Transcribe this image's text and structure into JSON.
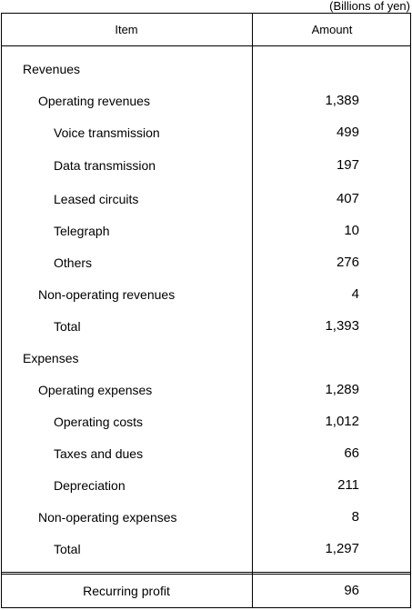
{
  "unit_note": "(Billions of yen)",
  "header": {
    "item": "Item",
    "amount": "Amount"
  },
  "rows": [
    {
      "label": "Revenues",
      "amount": ""
    },
    {
      "label": "Operating revenues",
      "amount": "1,389"
    },
    {
      "label": "Voice transmission",
      "amount": "499"
    },
    {
      "label": "Data transmission",
      "amount": "197"
    },
    {
      "label": "Leased circuits",
      "amount": "407"
    },
    {
      "label": "Telegraph",
      "amount": "10"
    },
    {
      "label": "Others",
      "amount": "276"
    },
    {
      "label": "Non-operating revenues",
      "amount": "4"
    },
    {
      "label": "Total",
      "amount": "1,393"
    },
    {
      "label": "Expenses",
      "amount": ""
    },
    {
      "label": "Operating expenses",
      "amount": "1,289"
    },
    {
      "label": "Operating costs",
      "amount": "1,012"
    },
    {
      "label": "Taxes and dues",
      "amount": "66"
    },
    {
      "label": "Depreciation",
      "amount": "211"
    },
    {
      "label": "Non-operating expenses",
      "amount": "8"
    },
    {
      "label": "Total",
      "amount": "1,297"
    }
  ],
  "profit": {
    "label": "Recurring profit",
    "amount": "96"
  }
}
